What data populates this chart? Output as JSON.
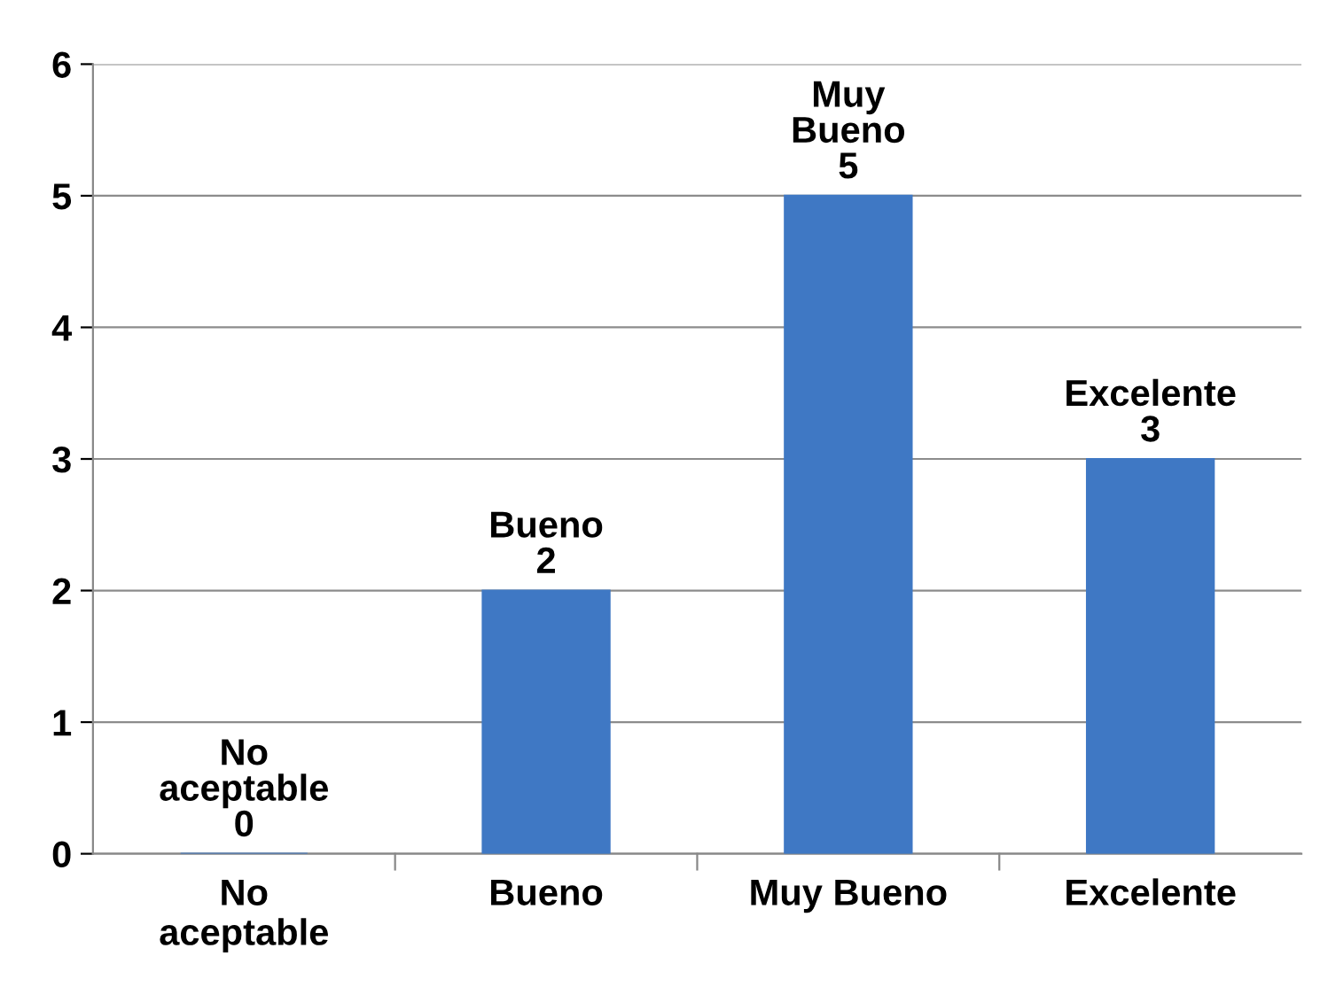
{
  "chart_data": {
    "type": "bar",
    "categories": [
      "No\naceptable",
      "Bueno",
      "Muy Bueno",
      "Excelente"
    ],
    "values": [
      0,
      2,
      5,
      3
    ],
    "color": "#3f78c4",
    "value_labels": [
      "No\naceptable\n0",
      "Bueno\n2",
      "Muy\nBueno\n5",
      "Excelente\n3"
    ],
    "ylim": [
      0,
      6
    ],
    "yticks": [
      0,
      1,
      2,
      3,
      4,
      5,
      6
    ],
    "grid": "y",
    "legend": false
  }
}
